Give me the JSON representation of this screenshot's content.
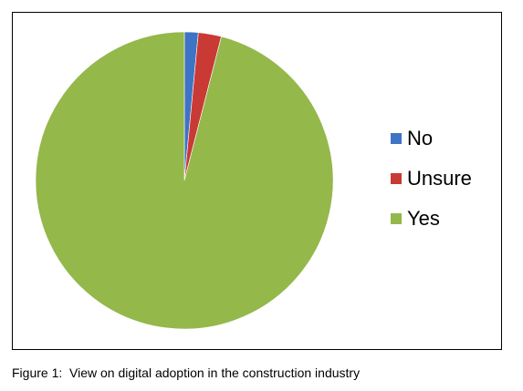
{
  "chart_data": {
    "type": "pie",
    "categories": [
      "No",
      "Unsure",
      "Yes"
    ],
    "values": [
      1.5,
      2.5,
      96
    ],
    "colors": [
      "#3f73c4",
      "#c93a35",
      "#94b84a"
    ],
    "legend_position": "right",
    "title": ""
  },
  "caption": "Figure 1:  View on digital adoption in the construction industry"
}
